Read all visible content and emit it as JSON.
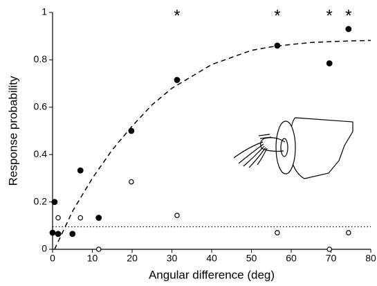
{
  "chart_data": {
    "type": "scatter",
    "x_label": "Angular difference (deg)",
    "y_label": "Response probability",
    "xlim": [
      0,
      80
    ],
    "ylim": [
      0,
      1
    ],
    "xticks": [
      0,
      10,
      20,
      30,
      40,
      50,
      60,
      70,
      80
    ],
    "yticks": [
      0,
      0.2,
      0.4,
      0.6,
      0.8,
      1
    ],
    "series": [
      {
        "marker": "filled",
        "color": "#000000",
        "x": [
          0,
          0.5,
          1.4,
          5,
          7,
          11.6,
          19.8,
          31.3,
          56.5,
          69.6,
          74.4
        ],
        "values": [
          0.07,
          0.2,
          0.065,
          0.065,
          0.333,
          0.133,
          0.5,
          0.715,
          0.86,
          0.785,
          0.93
        ]
      },
      {
        "marker": "open",
        "color": "#000000",
        "x": [
          1.4,
          7,
          11.6,
          19.8,
          31.3,
          56.5,
          69.6,
          74.4
        ],
        "values": [
          0.133,
          0.133,
          0,
          0.285,
          0.143,
          0.07,
          0,
          0.07
        ]
      }
    ],
    "fit": {
      "style": "dashed",
      "color": "#000000",
      "x": [
        0.5,
        5,
        10,
        15,
        20,
        25,
        30,
        35,
        40,
        45,
        50,
        55,
        60,
        65,
        70,
        75,
        80
      ],
      "values": [
        0,
        0.16,
        0.3,
        0.42,
        0.52,
        0.61,
        0.68,
        0.73,
        0.78,
        0.81,
        0.84,
        0.855,
        0.865,
        0.873,
        0.877,
        0.88,
        0.882
      ]
    },
    "baseline": {
      "style": "dotted",
      "color": "#000000",
      "value": 0.095
    },
    "annotations": [
      {
        "text": "*",
        "x": 31.3
      },
      {
        "text": "*",
        "x": 56.5
      },
      {
        "text": "*",
        "x": 69.6
      },
      {
        "text": "*",
        "x": 74.4
      }
    ]
  }
}
